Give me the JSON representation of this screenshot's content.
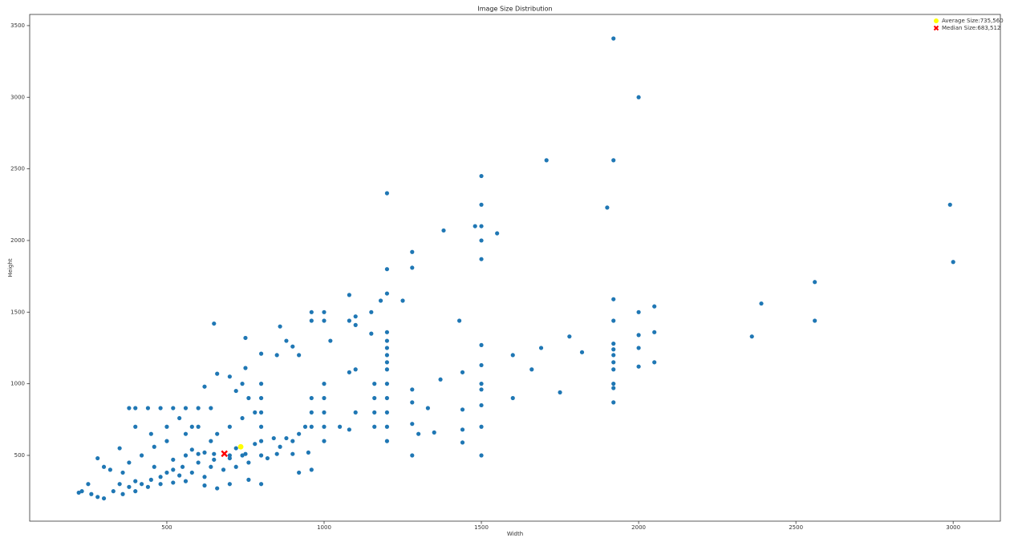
{
  "chart_data": {
    "type": "scatter",
    "title": "Image Size Distribution",
    "x_label": "Width",
    "y_label": "Height",
    "xlim": [
      64,
      3150
    ],
    "ylim": [
      41,
      3578
    ],
    "xticks": [
      500,
      1000,
      1500,
      2000,
      2500,
      3000
    ],
    "yticks": [
      500,
      1000,
      1500,
      2000,
      2500,
      3000,
      3500
    ],
    "grid": false,
    "legend_position": "upper-right",
    "series": [
      {
        "color": "#1f77b4",
        "x": [
          1920,
          2000,
          1920,
          1707,
          1500,
          1200,
          1900,
          2990,
          3000,
          1500,
          1500,
          1480,
          1550,
          1380,
          1500,
          1280,
          1500,
          1280,
          1200,
          2560,
          1080,
          1200,
          1250,
          1180,
          1920,
          2050,
          2000,
          1920,
          2560,
          2390,
          2360,
          1430,
          1000,
          960,
          1100,
          1150,
          1000,
          960,
          1080,
          1100,
          1150,
          1200,
          1200,
          1200,
          1200,
          1200,
          1200,
          2050,
          2000,
          1920,
          1920,
          1920,
          1920,
          1920,
          1920,
          1920,
          1920,
          2000,
          2000,
          2050,
          1780,
          1820,
          1690,
          1600,
          1660,
          1750,
          1600,
          1500,
          1500,
          1500,
          1500,
          1500,
          1500,
          1500,
          1440,
          1370,
          1440,
          1440,
          1440,
          1350,
          1330,
          1280,
          1280,
          1280,
          1280,
          1300,
          1200,
          1200,
          1200,
          1200,
          1200,
          1160,
          1160,
          1160,
          1160,
          1100,
          1080,
          1100,
          1080,
          1050,
          1000,
          1000,
          1000,
          1000,
          1000,
          960,
          960,
          960,
          920,
          900,
          880,
          860,
          850,
          800,
          800,
          800,
          800,
          800,
          800,
          800,
          750,
          750,
          740,
          760,
          720,
          700,
          660,
          650,
          620,
          600,
          560,
          520,
          480,
          440,
          400,
          380,
          640,
          600,
          560,
          500,
          450,
          400,
          350,
          300,
          280,
          320,
          250,
          230,
          220,
          260,
          280,
          300,
          330,
          350,
          380,
          400,
          420,
          450,
          480,
          500,
          520,
          550,
          600,
          650,
          700,
          750,
          850,
          900,
          950,
          560,
          600,
          650,
          700,
          640,
          580,
          540,
          620,
          680,
          720,
          760,
          820,
          860,
          900,
          920,
          940,
          880,
          840,
          780,
          720,
          640,
          580,
          540,
          500,
          460,
          420,
          380,
          360,
          460,
          520,
          580,
          660,
          700,
          740,
          780,
          440,
          480,
          520,
          560,
          400,
          360,
          620,
          740,
          920,
          960,
          800,
          760,
          700,
          660,
          620,
          1020
        ],
        "values": [
          3410,
          3000,
          2560,
          2560,
          2450,
          2330,
          2230,
          2250,
          1850,
          2250,
          2100,
          2100,
          2050,
          2070,
          2000,
          1920,
          1870,
          1810,
          1800,
          1710,
          1620,
          1630,
          1580,
          1580,
          1590,
          1540,
          1500,
          1440,
          1440,
          1560,
          1330,
          1440,
          1500,
          1500,
          1470,
          1500,
          1440,
          1440,
          1440,
          1410,
          1350,
          1360,
          1300,
          1250,
          1200,
          1150,
          1100,
          1360,
          1340,
          1280,
          1240,
          1200,
          1150,
          1100,
          1000,
          970,
          870,
          1250,
          1120,
          1150,
          1330,
          1220,
          1250,
          1200,
          1100,
          940,
          900,
          1270,
          1130,
          1000,
          960,
          850,
          700,
          500,
          1080,
          1030,
          820,
          680,
          590,
          660,
          830,
          960,
          870,
          720,
          500,
          650,
          1000,
          900,
          800,
          700,
          600,
          1000,
          900,
          800,
          700,
          1100,
          1080,
          800,
          680,
          700,
          1000,
          900,
          800,
          700,
          600,
          900,
          800,
          700,
          1200,
          1260,
          1300,
          1400,
          1200,
          1210,
          1000,
          900,
          800,
          700,
          600,
          500,
          1320,
          1110,
          1000,
          900,
          950,
          1050,
          1070,
          1420,
          980,
          830,
          830,
          830,
          830,
          830,
          830,
          830,
          830,
          700,
          650,
          700,
          650,
          700,
          550,
          420,
          480,
          400,
          300,
          250,
          240,
          230,
          210,
          200,
          250,
          300,
          280,
          320,
          300,
          330,
          350,
          380,
          400,
          420,
          450,
          470,
          500,
          510,
          510,
          510,
          520,
          500,
          510,
          510,
          480,
          420,
          380,
          360,
          350,
          400,
          420,
          450,
          480,
          560,
          600,
          650,
          700,
          620,
          620,
          580,
          550,
          600,
          700,
          760,
          600,
          560,
          500,
          450,
          380,
          420,
          470,
          540,
          650,
          700,
          760,
          800,
          280,
          300,
          310,
          320,
          250,
          230,
          520,
          500,
          380,
          400,
          300,
          330,
          300,
          270,
          290,
          1300
        ]
      }
    ],
    "markers": [
      {
        "label": "Average Size:735,560",
        "x": 735,
        "y": 560,
        "color": "#ffff00",
        "marker": "o"
      },
      {
        "label": "Median Size:683,512",
        "x": 683,
        "y": 512,
        "color": "#ff0000",
        "marker": "x"
      }
    ]
  }
}
